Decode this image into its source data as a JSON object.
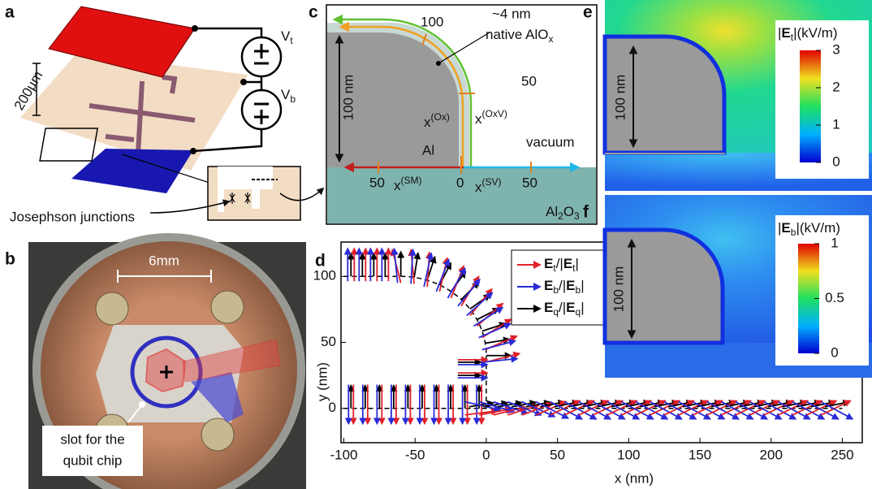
{
  "panel_labels": [
    "a",
    "b",
    "c",
    "d",
    "e",
    "f"
  ],
  "panel_a": {
    "scale_bar": "200µm",
    "v_top": [
      "V",
      "t"
    ],
    "v_bottom": [
      "V",
      "b"
    ],
    "junctions": "Josephson junctions"
  },
  "panel_b": {
    "scale_bar": "6mm",
    "slot": [
      "slot for the",
      "qubit chip"
    ]
  },
  "panel_c": {
    "arc_tick_100": "100",
    "oxide": "~4 nm",
    "native": [
      "native AlO",
      "x"
    ],
    "arc_tick_50": "50",
    "x_ox": [
      "x",
      "(Ox)"
    ],
    "x_oxv": [
      "x",
      "(OxV)"
    ],
    "metal": "Al",
    "vacuum": "vacuum",
    "tick_sm_50": "50",
    "tick_0": "0",
    "x_sm": [
      "x",
      "(SM)"
    ],
    "x_sv": [
      "x",
      "(SV)"
    ],
    "tick_sv_50": "50",
    "substrate": [
      "Al",
      "2",
      "O",
      "3"
    ],
    "height": "100 nm"
  },
  "chart_data": {
    "type": "quiver",
    "xlabel": "x (nm)",
    "ylabel": "y (nm)",
    "xlim": [
      -102,
      264
    ],
    "ylim": [
      -26,
      126
    ],
    "xticks": [
      -100,
      -50,
      0,
      50,
      100,
      150,
      200,
      250
    ],
    "yticks": [
      0,
      50,
      100
    ],
    "series": [
      {
        "name": [
          "E",
          "t",
          "/|",
          "E",
          "t",
          "|"
        ],
        "color": "#e0202a"
      },
      {
        "name": [
          "E",
          "b",
          "/|",
          "E",
          "b",
          "|"
        ],
        "color": "#2a2ad8"
      },
      {
        "name": [
          "E",
          "q",
          "/|",
          "E",
          "q",
          "|"
        ],
        "color": "#000000"
      }
    ]
  },
  "panel_e": {
    "title": [
      "|",
      "E",
      "t",
      "|(kV/m)"
    ],
    "height": "100 nm",
    "clim": [
      0,
      3
    ],
    "cticks": [
      0,
      1,
      2,
      3
    ]
  },
  "panel_f": {
    "title": [
      "|",
      "E",
      "b",
      "|(kV/m)"
    ],
    "height": "100 nm",
    "clim": [
      0,
      1
    ],
    "cticks": [
      0,
      0.5,
      1
    ]
  }
}
